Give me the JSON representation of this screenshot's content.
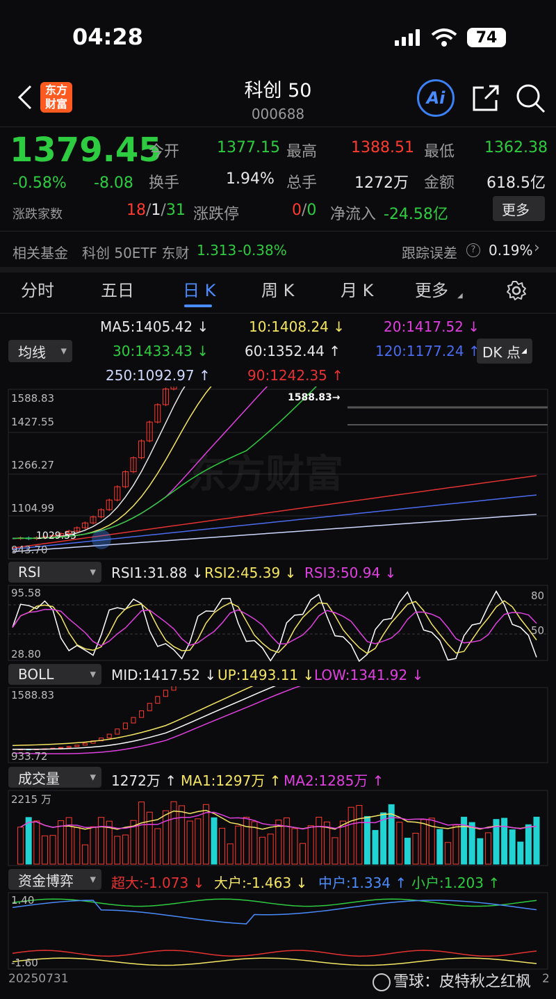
{
  "status_bar": {
    "time": "04:28",
    "battery": "74"
  },
  "header": {
    "title": "科创 50",
    "code": "000688",
    "logo_line1": "东方",
    "logo_line2": "财富",
    "ai_label": "Ai"
  },
  "quote": {
    "price": "1379.45",
    "pct": "-0.58%",
    "change": "-8.08",
    "open_label": "今开",
    "open": "1377.15",
    "high_label": "最高",
    "high": "1388.51",
    "low_label": "最低",
    "low": "1362.38",
    "turnover_label": "换手",
    "turnover": "1.94%",
    "volume_label": "总手",
    "volume": "1272万",
    "amount_label": "金额",
    "amount": "618.5亿",
    "breadth_label": "涨跌家数",
    "breadth_up": "18",
    "breadth_flat": "1",
    "breadth_down": "31",
    "slash": "/",
    "limit_label": "涨跌停",
    "limit_up": "0",
    "limit_down": "0",
    "netflow_label": "净流入",
    "netflow": "-24.58亿",
    "more_label": "更多"
  },
  "fund": {
    "label": "相关基金",
    "name": "科创 50ETF 东财",
    "price": "1.313",
    "pct": "-0.38%",
    "track_label": "跟踪误差",
    "track_value": "0.19%"
  },
  "tabs": [
    "分时",
    "五日",
    "日 K",
    "周 K",
    "月 K",
    "更多"
  ],
  "ma": {
    "selector": "均线",
    "dk_label": "DK 点",
    "ma5": "MA5:1405.42 ↓",
    "ma10": "10:1408.24 ↓",
    "ma20": "20:1417.52 ↓",
    "ma30": "30:1433.43 ↓",
    "ma60": "60:1352.44 ↑",
    "ma120": "120:1177.24 ↑",
    "ma250": "250:1092.97 ↑",
    "ma90": "90:1242.35 ↑"
  },
  "main_chart": {
    "y_labels": [
      "1588.83",
      "1427.55",
      "1266.27",
      "1104.99",
      "943.70"
    ],
    "max_marker": "1588.83→",
    "min_marker": "1029.53",
    "watermark": "东方财富"
  },
  "rsi": {
    "selector": "RSI",
    "rsi1": "RSI1:31.88 ↓",
    "rsi2": "RSI2:45.39 ↓",
    "rsi3": "RSI3:50.94 ↓",
    "y_top": "95.58",
    "y_bottom": "28.80",
    "level80": "80",
    "level50": "50"
  },
  "boll": {
    "selector": "BOLL",
    "mid": "MID:1417.52 ↓",
    "up": "UP:1493.11 ↓",
    "low": "LOW:1341.92 ↓",
    "y_top": "1588.83",
    "y_bottom": "933.72"
  },
  "vol": {
    "selector": "成交量",
    "value": "1272万 ↑",
    "ma1": "MA1:1297万 ↑",
    "ma2": "MA2:1285万 ↑",
    "y_top": "2215 万"
  },
  "flow": {
    "selector": "资金博弈",
    "super": "超大:-1.073 ↓",
    "large": "大户:-1.463 ↓",
    "mid": "中户:1.334 ↑",
    "small": "小户:1.203 ↑",
    "y_top": "1.40",
    "y_bottom": "-1.60"
  },
  "footer": {
    "date": "20250731",
    "watermark": "雪球：皮特秋之红枫",
    "tail": "2"
  },
  "colors": {
    "up": "#ff3b30",
    "down": "#2ecc40",
    "accent": "#4a8cff",
    "cyan": "#22d3d3",
    "yellow": "#f5e663",
    "magenta": "#e040e0"
  }
}
